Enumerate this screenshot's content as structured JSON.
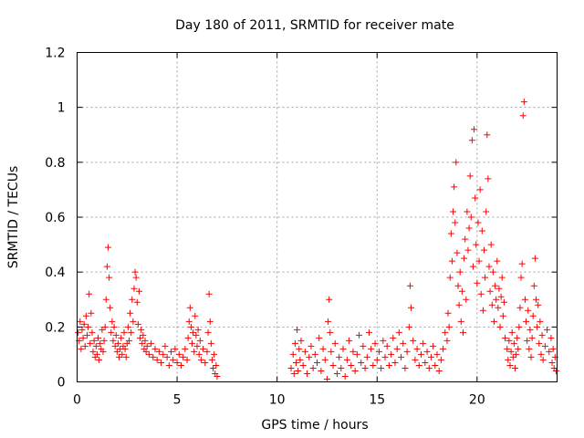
{
  "chart_data": {
    "type": "scatter",
    "title": "Day 180 of 2011, SRMTID for receiver mate",
    "xlabel": "GPS time / hours",
    "ylabel": "SRMTID / TECUs",
    "xlim": [
      0,
      24
    ],
    "ylim": [
      0,
      1.2
    ],
    "xticks": [
      0,
      5,
      10,
      15,
      20
    ],
    "xtick_labels": [
      "0",
      "5",
      "10",
      "15",
      "20"
    ],
    "yticks": [
      0,
      0.2,
      0.4,
      0.6,
      0.8,
      1.0,
      1.2
    ],
    "ytick_labels": [
      "0",
      "0.2",
      "0.4",
      "0.6",
      "0.8",
      "1",
      "1.2"
    ],
    "grid": true,
    "marker": "+",
    "series": [
      {
        "name": "SRMTID",
        "color": "#ff0000",
        "points": [
          [
            0.05,
            0.18
          ],
          [
            0.1,
            0.15
          ],
          [
            0.15,
            0.22
          ],
          [
            0.2,
            0.12
          ],
          [
            0.25,
            0.19
          ],
          [
            0.3,
            0.16
          ],
          [
            0.35,
            0.21
          ],
          [
            0.4,
            0.13
          ],
          [
            0.45,
            0.24
          ],
          [
            0.5,
            0.17
          ],
          [
            0.55,
            0.2
          ],
          [
            0.6,
            0.32
          ],
          [
            0.65,
            0.14
          ],
          [
            0.7,
            0.25
          ],
          [
            0.75,
            0.18
          ],
          [
            0.8,
            0.11
          ],
          [
            0.85,
            0.15
          ],
          [
            0.9,
            0.09
          ],
          [
            0.95,
            0.13
          ],
          [
            1.0,
            0.1
          ],
          [
            1.05,
            0.16
          ],
          [
            1.1,
            0.08
          ],
          [
            1.15,
            0.14
          ],
          [
            1.2,
            0.12
          ],
          [
            1.25,
            0.19
          ],
          [
            1.3,
            0.11
          ],
          [
            1.35,
            0.15
          ],
          [
            1.4,
            0.2
          ],
          [
            1.45,
            0.3
          ],
          [
            1.5,
            0.42
          ],
          [
            1.55,
            0.49
          ],
          [
            1.6,
            0.38
          ],
          [
            1.65,
            0.27
          ],
          [
            1.7,
            0.18
          ],
          [
            1.75,
            0.22
          ],
          [
            1.8,
            0.15
          ],
          [
            1.85,
            0.2
          ],
          [
            1.9,
            0.13
          ],
          [
            1.95,
            0.17
          ],
          [
            2.0,
            0.11
          ],
          [
            2.05,
            0.14
          ],
          [
            2.1,
            0.09
          ],
          [
            2.15,
            0.12
          ],
          [
            2.2,
            0.16
          ],
          [
            2.25,
            0.1
          ],
          [
            2.3,
            0.13
          ],
          [
            2.35,
            0.18
          ],
          [
            2.4,
            0.12
          ],
          [
            2.45,
            0.09
          ],
          [
            2.5,
            0.14
          ],
          [
            2.55,
            0.2
          ],
          [
            2.6,
            0.15
          ],
          [
            2.65,
            0.25
          ],
          [
            2.7,
            0.18
          ],
          [
            2.75,
            0.3
          ],
          [
            2.8,
            0.22
          ],
          [
            2.85,
            0.34
          ],
          [
            2.9,
            0.4
          ],
          [
            2.95,
            0.38
          ],
          [
            3.0,
            0.29
          ],
          [
            3.05,
            0.21
          ],
          [
            3.1,
            0.33
          ],
          [
            3.15,
            0.16
          ],
          [
            3.2,
            0.19
          ],
          [
            3.25,
            0.14
          ],
          [
            3.3,
            0.17
          ],
          [
            3.35,
            0.12
          ],
          [
            3.4,
            0.15
          ],
          [
            3.45,
            0.11
          ],
          [
            3.5,
            0.13
          ],
          [
            3.6,
            0.1
          ],
          [
            3.7,
            0.14
          ],
          [
            3.8,
            0.09
          ],
          [
            3.9,
            0.12
          ],
          [
            4.0,
            0.08
          ],
          [
            4.1,
            0.11
          ],
          [
            4.2,
            0.07
          ],
          [
            4.3,
            0.1
          ],
          [
            4.4,
            0.13
          ],
          [
            4.5,
            0.09
          ],
          [
            4.6,
            0.06
          ],
          [
            4.7,
            0.11
          ],
          [
            4.8,
            0.08
          ],
          [
            4.9,
            0.12
          ],
          [
            5.0,
            0.07
          ],
          [
            5.1,
            0.1
          ],
          [
            5.2,
            0.06
          ],
          [
            5.3,
            0.09
          ],
          [
            5.4,
            0.12
          ],
          [
            5.5,
            0.08
          ],
          [
            5.55,
            0.16
          ],
          [
            5.6,
            0.22
          ],
          [
            5.65,
            0.27
          ],
          [
            5.7,
            0.2
          ],
          [
            5.75,
            0.14
          ],
          [
            5.8,
            0.18
          ],
          [
            5.85,
            0.11
          ],
          [
            5.9,
            0.24
          ],
          [
            5.95,
            0.17
          ],
          [
            6.0,
            0.13
          ],
          [
            6.05,
            0.19
          ],
          [
            6.1,
            0.1
          ],
          [
            6.15,
            0.15
          ],
          [
            6.2,
            0.08
          ],
          [
            6.3,
            0.12
          ],
          [
            6.4,
            0.07
          ],
          [
            6.5,
            0.11
          ],
          [
            6.55,
            0.18
          ],
          [
            6.6,
            0.32
          ],
          [
            6.65,
            0.22
          ],
          [
            6.7,
            0.14
          ],
          [
            6.75,
            0.08
          ],
          [
            6.8,
            0.05
          ],
          [
            6.85,
            0.1
          ],
          [
            6.9,
            0.03
          ],
          [
            6.95,
            0.06
          ],
          [
            7.0,
            0.02
          ],
          [
            10.7,
            0.05
          ],
          [
            10.8,
            0.1
          ],
          [
            10.85,
            0.03
          ],
          [
            10.9,
            0.14
          ],
          [
            10.95,
            0.07
          ],
          [
            11.0,
            0.19
          ],
          [
            11.05,
            0.04
          ],
          [
            11.1,
            0.12
          ],
          [
            11.15,
            0.08
          ],
          [
            11.2,
            0.15
          ],
          [
            11.3,
            0.06
          ],
          [
            11.4,
            0.11
          ],
          [
            11.5,
            0.03
          ],
          [
            11.6,
            0.09
          ],
          [
            11.7,
            0.13
          ],
          [
            11.8,
            0.05
          ],
          [
            11.9,
            0.1
          ],
          [
            12.0,
            0.07
          ],
          [
            12.1,
            0.16
          ],
          [
            12.2,
            0.04
          ],
          [
            12.3,
            0.12
          ],
          [
            12.4,
            0.08
          ],
          [
            12.5,
            0.01
          ],
          [
            12.55,
            0.22
          ],
          [
            12.6,
            0.3
          ],
          [
            12.65,
            0.18
          ],
          [
            12.7,
            0.11
          ],
          [
            12.8,
            0.06
          ],
          [
            12.9,
            0.14
          ],
          [
            13.0,
            0.03
          ],
          [
            13.1,
            0.09
          ],
          [
            13.2,
            0.05
          ],
          [
            13.3,
            0.12
          ],
          [
            13.4,
            0.02
          ],
          [
            13.5,
            0.08
          ],
          [
            13.6,
            0.15
          ],
          [
            13.7,
            0.06
          ],
          [
            13.8,
            0.11
          ],
          [
            13.9,
            0.04
          ],
          [
            14.0,
            0.1
          ],
          [
            14.1,
            0.17
          ],
          [
            14.2,
            0.07
          ],
          [
            14.3,
            0.13
          ],
          [
            14.4,
            0.05
          ],
          [
            14.5,
            0.09
          ],
          [
            14.6,
            0.18
          ],
          [
            14.7,
            0.12
          ],
          [
            14.8,
            0.06
          ],
          [
            14.9,
            0.14
          ],
          [
            15.0,
            0.08
          ],
          [
            15.1,
            0.11
          ],
          [
            15.2,
            0.05
          ],
          [
            15.3,
            0.15
          ],
          [
            15.4,
            0.09
          ],
          [
            15.5,
            0.13
          ],
          [
            15.6,
            0.06
          ],
          [
            15.7,
            0.1
          ],
          [
            15.8,
            0.16
          ],
          [
            15.9,
            0.07
          ],
          [
            16.0,
            0.12
          ],
          [
            16.1,
            0.18
          ],
          [
            16.2,
            0.09
          ],
          [
            16.3,
            0.14
          ],
          [
            16.4,
            0.05
          ],
          [
            16.5,
            0.11
          ],
          [
            16.6,
            0.2
          ],
          [
            16.65,
            0.35
          ],
          [
            16.7,
            0.27
          ],
          [
            16.8,
            0.15
          ],
          [
            16.9,
            0.08
          ],
          [
            17.0,
            0.12
          ],
          [
            17.1,
            0.06
          ],
          [
            17.2,
            0.1
          ],
          [
            17.3,
            0.14
          ],
          [
            17.4,
            0.07
          ],
          [
            17.5,
            0.11
          ],
          [
            17.6,
            0.05
          ],
          [
            17.7,
            0.09
          ],
          [
            17.8,
            0.13
          ],
          [
            17.9,
            0.06
          ],
          [
            18.0,
            0.1
          ],
          [
            18.1,
            0.04
          ],
          [
            18.2,
            0.08
          ],
          [
            18.3,
            0.12
          ],
          [
            18.4,
            0.18
          ],
          [
            18.5,
            0.15
          ],
          [
            18.55,
            0.25
          ],
          [
            18.6,
            0.2
          ],
          [
            18.65,
            0.38
          ],
          [
            18.7,
            0.54
          ],
          [
            18.75,
            0.44
          ],
          [
            18.8,
            0.62
          ],
          [
            18.85,
            0.71
          ],
          [
            18.9,
            0.58
          ],
          [
            18.95,
            0.8
          ],
          [
            19.0,
            0.47
          ],
          [
            19.05,
            0.35
          ],
          [
            19.1,
            0.28
          ],
          [
            19.15,
            0.4
          ],
          [
            19.2,
            0.22
          ],
          [
            19.25,
            0.33
          ],
          [
            19.3,
            0.18
          ],
          [
            19.35,
            0.45
          ],
          [
            19.4,
            0.52
          ],
          [
            19.45,
            0.3
          ],
          [
            19.5,
            0.62
          ],
          [
            19.55,
            0.48
          ],
          [
            19.6,
            0.56
          ],
          [
            19.65,
            0.75
          ],
          [
            19.7,
            0.6
          ],
          [
            19.75,
            0.88
          ],
          [
            19.8,
            0.42
          ],
          [
            19.85,
            0.92
          ],
          [
            19.9,
            0.67
          ],
          [
            19.95,
            0.5
          ],
          [
            20.0,
            0.36
          ],
          [
            20.05,
            0.58
          ],
          [
            20.1,
            0.44
          ],
          [
            20.15,
            0.7
          ],
          [
            20.2,
            0.32
          ],
          [
            20.25,
            0.55
          ],
          [
            20.3,
            0.26
          ],
          [
            20.35,
            0.48
          ],
          [
            20.4,
            0.38
          ],
          [
            20.45,
            0.62
          ],
          [
            20.5,
            0.9
          ],
          [
            20.55,
            0.74
          ],
          [
            20.6,
            0.42
          ],
          [
            20.65,
            0.33
          ],
          [
            20.7,
            0.5
          ],
          [
            20.75,
            0.28
          ],
          [
            20.8,
            0.4
          ],
          [
            20.85,
            0.22
          ],
          [
            20.9,
            0.35
          ],
          [
            20.95,
            0.3
          ],
          [
            21.0,
            0.44
          ],
          [
            21.05,
            0.27
          ],
          [
            21.1,
            0.34
          ],
          [
            21.15,
            0.2
          ],
          [
            21.2,
            0.31
          ],
          [
            21.25,
            0.38
          ],
          [
            21.3,
            0.24
          ],
          [
            21.35,
            0.29
          ],
          [
            21.4,
            0.16
          ],
          [
            21.5,
            0.12
          ],
          [
            21.55,
            0.08
          ],
          [
            21.6,
            0.15
          ],
          [
            21.65,
            0.06
          ],
          [
            21.7,
            0.11
          ],
          [
            21.75,
            0.18
          ],
          [
            21.8,
            0.09
          ],
          [
            21.85,
            0.14
          ],
          [
            21.9,
            0.05
          ],
          [
            21.95,
            0.1
          ],
          [
            22.0,
            0.16
          ],
          [
            22.05,
            0.12
          ],
          [
            22.1,
            0.2
          ],
          [
            22.15,
            0.27
          ],
          [
            22.2,
            0.38
          ],
          [
            22.25,
            0.43
          ],
          [
            22.3,
            0.97
          ],
          [
            22.35,
            1.02
          ],
          [
            22.4,
            0.3
          ],
          [
            22.45,
            0.22
          ],
          [
            22.5,
            0.15
          ],
          [
            22.55,
            0.26
          ],
          [
            22.6,
            0.12
          ],
          [
            22.65,
            0.19
          ],
          [
            22.7,
            0.09
          ],
          [
            22.75,
            0.16
          ],
          [
            22.8,
            0.24
          ],
          [
            22.85,
            0.35
          ],
          [
            22.9,
            0.45
          ],
          [
            22.95,
            0.3
          ],
          [
            23.0,
            0.2
          ],
          [
            23.05,
            0.28
          ],
          [
            23.1,
            0.14
          ],
          [
            23.15,
            0.22
          ],
          [
            23.2,
            0.1
          ],
          [
            23.25,
            0.17
          ],
          [
            23.3,
            0.08
          ],
          [
            23.4,
            0.13
          ],
          [
            23.5,
            0.19
          ],
          [
            23.6,
            0.11
          ],
          [
            23.7,
            0.16
          ],
          [
            23.75,
            0.07
          ],
          [
            23.8,
            0.12
          ],
          [
            23.85,
            0.05
          ],
          [
            23.9,
            0.09
          ],
          [
            23.95,
            0.04
          ]
        ]
      }
    ]
  }
}
